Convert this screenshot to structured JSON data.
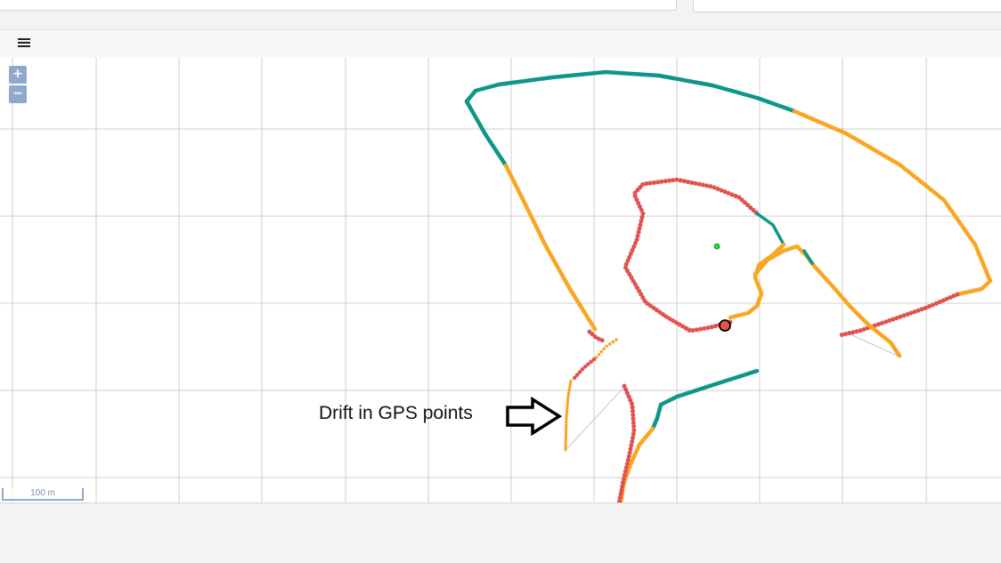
{
  "toolbar": {
    "menu_icon": "hamburger-menu-icon"
  },
  "map": {
    "zoom_in_label": "+",
    "zoom_out_label": "−",
    "scale_label": "100 m",
    "annotation": "Drift in GPS points",
    "annotation_icon": "right-arrow-icon",
    "colors": {
      "track_teal": "#0f9688",
      "track_orange": "#f9a623",
      "track_red": "#e2524f",
      "center_marker": "#2bd62b",
      "position_marker": "#e2524f",
      "grid": "#cfcfcf"
    }
  }
}
